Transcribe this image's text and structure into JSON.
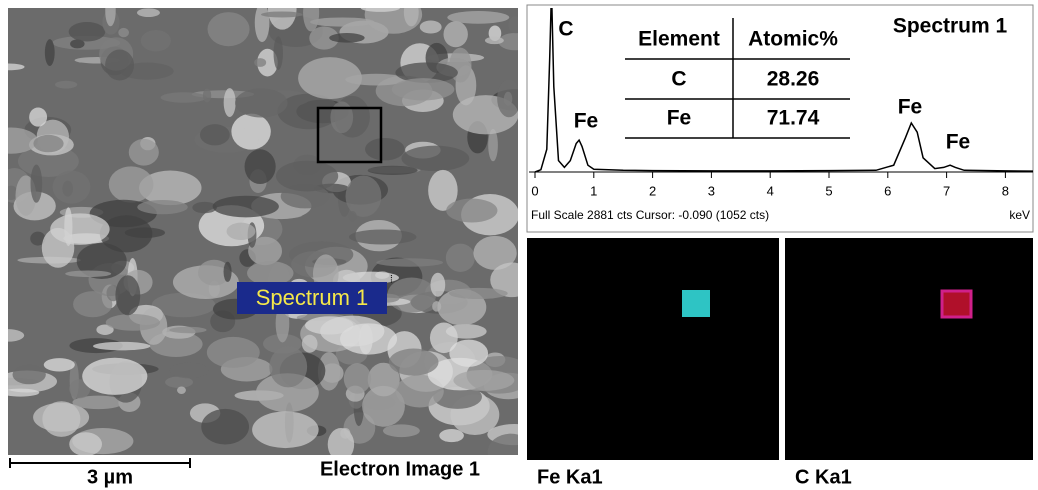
{
  "sem_panel": {
    "label": "Spectrum 1",
    "scale_bar": "3 µm",
    "caption": "Electron Image 1"
  },
  "chart_data": {
    "type": "line",
    "title": "Spectrum 1",
    "x": [
      0,
      0.1,
      0.2,
      0.25,
      0.28,
      0.32,
      0.4,
      0.5,
      0.6,
      0.7,
      0.75,
      0.8,
      0.9,
      1.0,
      1.5,
      2,
      3,
      4,
      5,
      5.8,
      6.1,
      6.3,
      6.4,
      6.5,
      6.6,
      6.8,
      6.95,
      7.06,
      7.15,
      7.3,
      8,
      8.47
    ],
    "values": [
      0,
      40,
      400,
      2000,
      3200,
      1500,
      200,
      80,
      200,
      500,
      560,
      450,
      120,
      50,
      30,
      25,
      20,
      20,
      25,
      30,
      120,
      600,
      860,
      700,
      250,
      60,
      80,
      120,
      80,
      30,
      20,
      15
    ],
    "color": "#000000",
    "xlim": [
      0,
      8.5
    ],
    "ylim": [
      0,
      2881
    ],
    "xticks": [
      0,
      1,
      2,
      3,
      4,
      5,
      6,
      7,
      8
    ],
    "xlabel": "keV",
    "footer": "Full Scale 2881 cts Cursor: -0.090  (1052 cts)",
    "peak_labels": [
      "C",
      "Fe",
      "Fe",
      "Fe"
    ],
    "table": {
      "header": [
        "Element",
        "Atomic%"
      ],
      "rows": [
        [
          "C",
          "28.26"
        ],
        [
          "Fe",
          "71.74"
        ]
      ]
    }
  },
  "maps": [
    {
      "label": "Fe Ka1",
      "color": "#2ec4c4"
    },
    {
      "label": "C Ka1",
      "color": "#d0208a"
    }
  ]
}
